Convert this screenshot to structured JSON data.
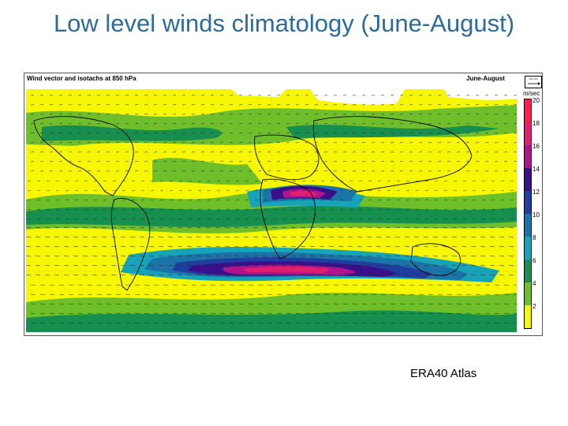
{
  "slide": {
    "title": "Low level winds climatology (June-August)",
    "source": "ERA40 Atlas"
  },
  "map": {
    "panel_title": "Wind vector and isotachs at 850 hPa",
    "season": "June-August",
    "reference_vector_label": "10.0 m/s",
    "colorbar": {
      "unit": "m/sec",
      "ticks": [
        "20",
        "18",
        "16",
        "14",
        "12",
        "10",
        "8",
        "6",
        "4",
        "2"
      ],
      "colors": [
        "#ff1f4a",
        "#e0206e",
        "#b0148c",
        "#3a0f8c",
        "#1f3fa0",
        "#1a74a8",
        "#17a3b8",
        "#178f4f",
        "#6fbf2a",
        "#f7f700"
      ]
    }
  }
}
